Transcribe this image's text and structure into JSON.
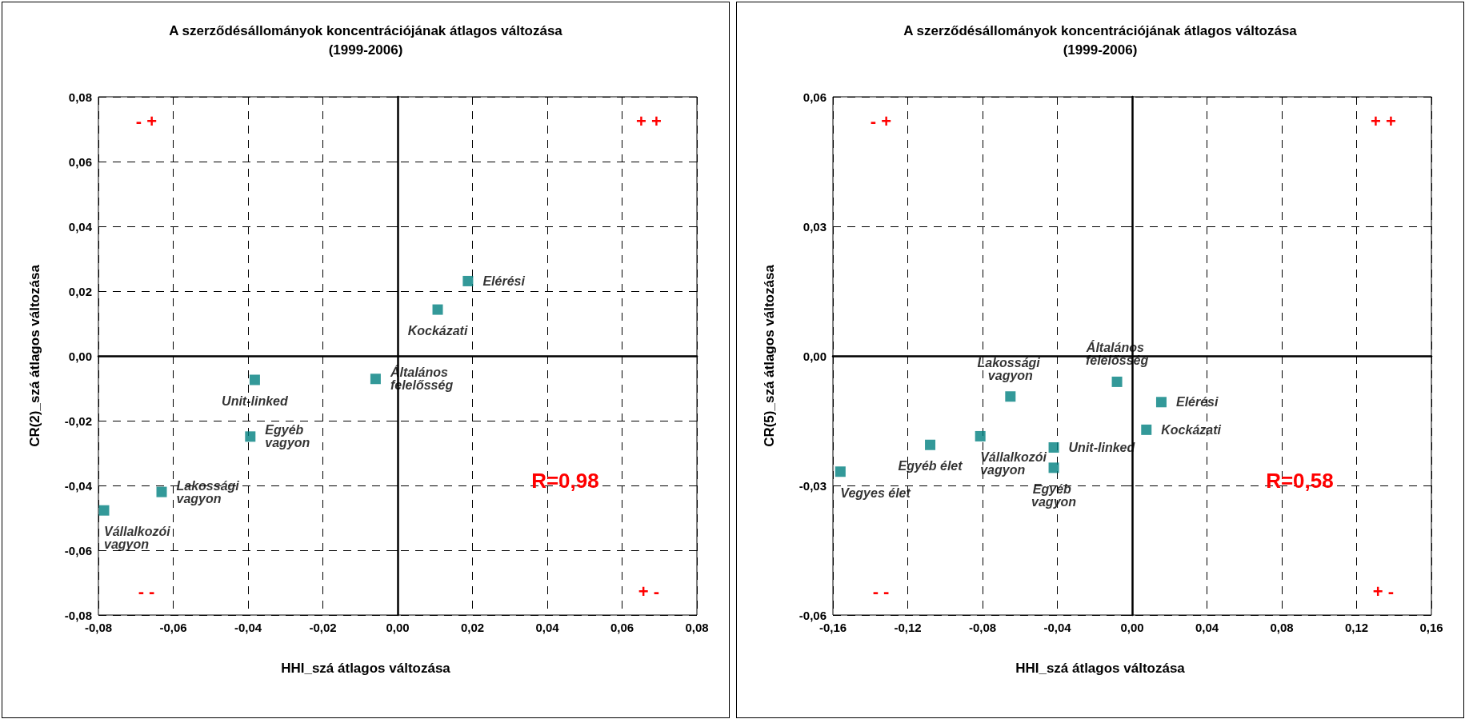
{
  "chart_data": [
    {
      "type": "scatter",
      "title": "A szerződésállományok koncentrációjának átlagos változása\n(1999-2006)",
      "xlabel": "HHI_szá átlagos változása",
      "ylabel": "CR(2)_szá átlagos változása",
      "x": [
        0.0188,
        0.0107,
        -0.0059,
        -0.0382,
        -0.0394,
        -0.0631,
        -0.0785
      ],
      "series": [
        {
          "color": "#008080",
          "values": [
            0.0231,
            0.0143,
            -0.0071,
            -0.0074,
            -0.0249,
            -0.042,
            -0.0477
          ]
        }
      ],
      "xlim": [
        -0.08,
        0.08
      ],
      "ylim": [
        -0.08,
        0.08
      ],
      "xticks": [
        {
          "value": -0.08,
          "label": "-0,08"
        },
        {
          "value": -0.06,
          "label": "-0,06"
        },
        {
          "value": -0.04,
          "label": "-0,04"
        },
        {
          "value": -0.02,
          "label": "-0,02"
        },
        {
          "value": 0,
          "label": "0,00"
        },
        {
          "value": 0.02,
          "label": "0,02"
        },
        {
          "value": 0.04,
          "label": "0,04"
        },
        {
          "value": 0.06,
          "label": "0,06"
        },
        {
          "value": 0.08,
          "label": "0,08"
        }
      ],
      "yticks": [
        {
          "value": -0.08,
          "label": "-0,08"
        },
        {
          "value": -0.06,
          "label": "-0,06"
        },
        {
          "value": -0.04,
          "label": "-0,04"
        },
        {
          "value": -0.02,
          "label": "-0,02"
        },
        {
          "value": 0,
          "label": "0,00"
        },
        {
          "value": 0.02,
          "label": "0,02"
        },
        {
          "value": 0.04,
          "label": "0,04"
        },
        {
          "value": 0.06,
          "label": "0,06"
        },
        {
          "value": 0.08,
          "label": "0,08"
        }
      ],
      "grid": true,
      "marker": "square",
      "annotations": [
        {
          "text": "Elérési",
          "x": 0.0188,
          "y": 0.0231
        },
        {
          "text": "Kockázati",
          "x": 0.0107,
          "y": 0.0143
        },
        {
          "text": "Általános felelősség",
          "x": -0.0059,
          "y": -0.0071
        },
        {
          "text": "Unit-linked",
          "x": -0.0382,
          "y": -0.0074
        },
        {
          "text": "Egyéb vagyon",
          "x": -0.0394,
          "y": -0.0249
        },
        {
          "text": "Lakossági vagyon",
          "x": -0.0631,
          "y": -0.042
        },
        {
          "text": "Vállalkozói vagyon",
          "x": -0.0785,
          "y": -0.0477
        },
        "- +",
        "+ +",
        "- -",
        "+ -",
        "R=0,98"
      ]
    },
    {
      "type": "scatter",
      "title": "A szerződésállományok koncentrációjának átlagos változása\n(1999-2006)",
      "xlabel": "HHI_szá átlagos változása",
      "ylabel": "CR(5)_szá átlagos változása",
      "x": [
        0.0156,
        0.0076,
        -0.0081,
        -0.0651,
        -0.108,
        -0.0812,
        -0.0419,
        -0.0419,
        -0.156
      ],
      "series": [
        {
          "color": "#008080",
          "values": [
            -0.0107,
            -0.0171,
            -0.006,
            -0.0094,
            -0.0206,
            -0.0186,
            -0.0212,
            -0.0259,
            -0.0268
          ]
        }
      ],
      "xlim": [
        -0.16,
        0.16
      ],
      "ylim": [
        -0.06,
        0.06
      ],
      "xticks": [
        {
          "value": -0.16,
          "label": "-0,16"
        },
        {
          "value": -0.12,
          "label": "-0,12"
        },
        {
          "value": -0.08,
          "label": "-0,08"
        },
        {
          "value": -0.04,
          "label": "-0,04"
        },
        {
          "value": 0,
          "label": "0,00"
        },
        {
          "value": 0.04,
          "label": "0,04"
        },
        {
          "value": 0.08,
          "label": "0,08"
        },
        {
          "value": 0.12,
          "label": "0,12"
        },
        {
          "value": 0.16,
          "label": "0,16"
        }
      ],
      "yticks": [
        {
          "value": -0.06,
          "label": "-0,06"
        },
        {
          "value": -0.03,
          "label": "-0,03"
        },
        {
          "value": 0,
          "label": "0,00"
        },
        {
          "value": 0.03,
          "label": "0,03"
        },
        {
          "value": 0.06,
          "label": "0,06"
        }
      ],
      "grid": true,
      "marker": "square",
      "annotations": [
        {
          "text": "Elérési",
          "x": 0.0156,
          "y": -0.0107
        },
        {
          "text": "Kockázati",
          "x": 0.0076,
          "y": -0.0171
        },
        {
          "text": "Általános felelősség",
          "x": -0.0081,
          "y": -0.006
        },
        {
          "text": "Lakossági vagyon",
          "x": -0.0651,
          "y": -0.0094
        },
        {
          "text": "Egyéb élet",
          "x": -0.108,
          "y": -0.0206
        },
        {
          "text": "Vállalkozói vagyon",
          "x": -0.0812,
          "y": -0.0186
        },
        {
          "text": "Unit-linked",
          "x": -0.0419,
          "y": -0.0212
        },
        {
          "text": "Egyéb vagyon",
          "x": -0.0419,
          "y": -0.0259
        },
        {
          "text": "Vegyes élet",
          "x": -0.156,
          "y": -0.0268
        },
        "- +",
        "+ +",
        "- -",
        "+ -",
        "R=0,58"
      ]
    }
  ]
}
